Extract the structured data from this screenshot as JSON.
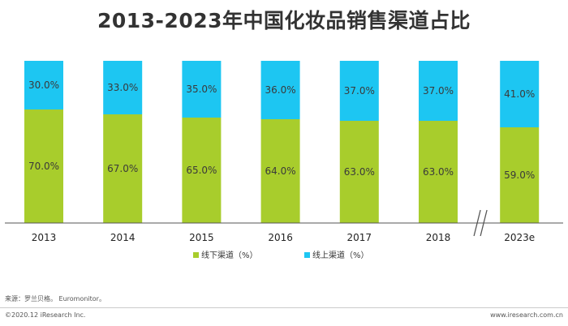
{
  "title": "2013-2023年中国化妆品销售渠道占比",
  "chart_data": {
    "type": "bar",
    "stacked": true,
    "percent_stacked": true,
    "categories": [
      "2013",
      "2014",
      "2015",
      "2016",
      "2017",
      "2018",
      "2023e"
    ],
    "series": [
      {
        "name": "线下渠道（%）",
        "color": "#a8cd2c",
        "values": [
          70.0,
          67.0,
          65.0,
          64.0,
          63.0,
          63.0,
          59.0
        ]
      },
      {
        "name": "线上渠道（%）",
        "color": "#1dc6f2",
        "values": [
          30.0,
          33.0,
          35.0,
          36.0,
          37.0,
          37.0,
          41.0
        ]
      }
    ],
    "ylim": [
      0,
      100
    ],
    "value_suffix": "%",
    "axis_break_before_last": true,
    "grid": false,
    "legend_position": "bottom"
  },
  "footer": {
    "source": "来源：罗兰贝格。 Euromonitor。",
    "copyright": "©2020.12 iResearch Inc.",
    "website": "www.iresearch.com.cn"
  }
}
